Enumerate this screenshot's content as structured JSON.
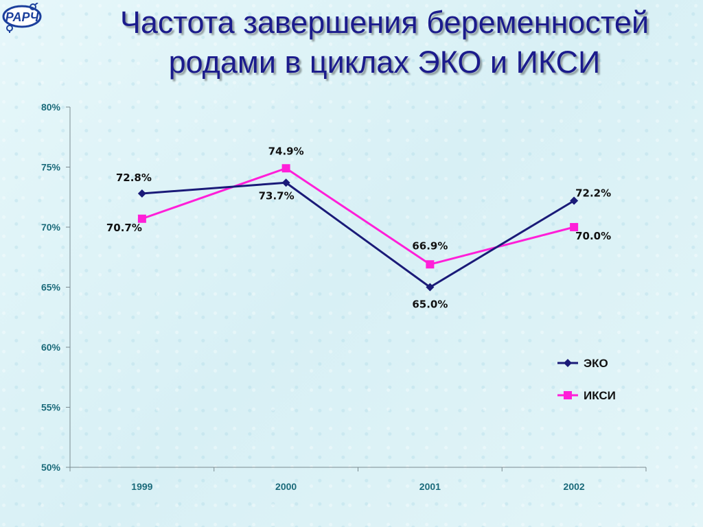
{
  "slide": {
    "title_line1": "Частота завершения беременностей",
    "title_line2": "родами в циклах ЭКО и ИКСИ",
    "logo_text": "РАРЧ"
  },
  "colors": {
    "title": "#1b1b8c",
    "axis_text": "#1a6a7a",
    "eko": "#1a1a78",
    "iksi": "#ff1fd8"
  },
  "chart_data": {
    "type": "line",
    "categories": [
      "1999",
      "2000",
      "2001",
      "2002"
    ],
    "ylim": [
      50,
      80
    ],
    "y_ticks": [
      50,
      55,
      60,
      65,
      70,
      75,
      80
    ],
    "y_tick_labels": [
      "50%",
      "55%",
      "60%",
      "65%",
      "70%",
      "75%",
      "80%"
    ],
    "grid": false,
    "legend_position": "right",
    "series": [
      {
        "name": "ЭКО",
        "marker": "diamond",
        "color": "#1a1a78",
        "values": [
          72.8,
          73.7,
          65.0,
          72.2
        ],
        "labels": [
          "72.8%",
          "73.7%",
          "65.0%",
          "72.2%"
        ]
      },
      {
        "name": "ИКСИ",
        "marker": "square",
        "color": "#ff1fd8",
        "values": [
          70.7,
          74.9,
          66.9,
          70.0
        ],
        "labels": [
          "70.7%",
          "74.9%",
          "66.9%",
          "70.0%"
        ]
      }
    ]
  }
}
